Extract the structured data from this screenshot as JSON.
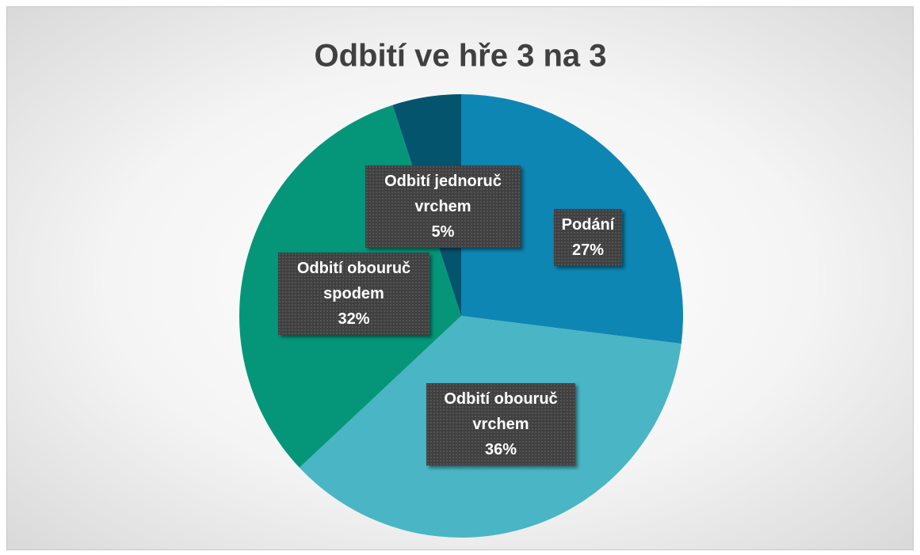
{
  "chart_data": {
    "type": "pie",
    "title": "Odbití ve hře 3 na 3",
    "categories": [
      "Podání",
      "Odbití obouruč vrchem",
      "Odbití obouruč spodem",
      "Odbití jednoruč vrchem"
    ],
    "values": [
      27,
      36,
      32,
      5
    ],
    "value_labels": [
      "27%",
      "36%",
      "32%",
      "5%"
    ],
    "colors": [
      "#0e86b4",
      "#4ab5c4",
      "#05967a",
      "#05546e"
    ]
  }
}
